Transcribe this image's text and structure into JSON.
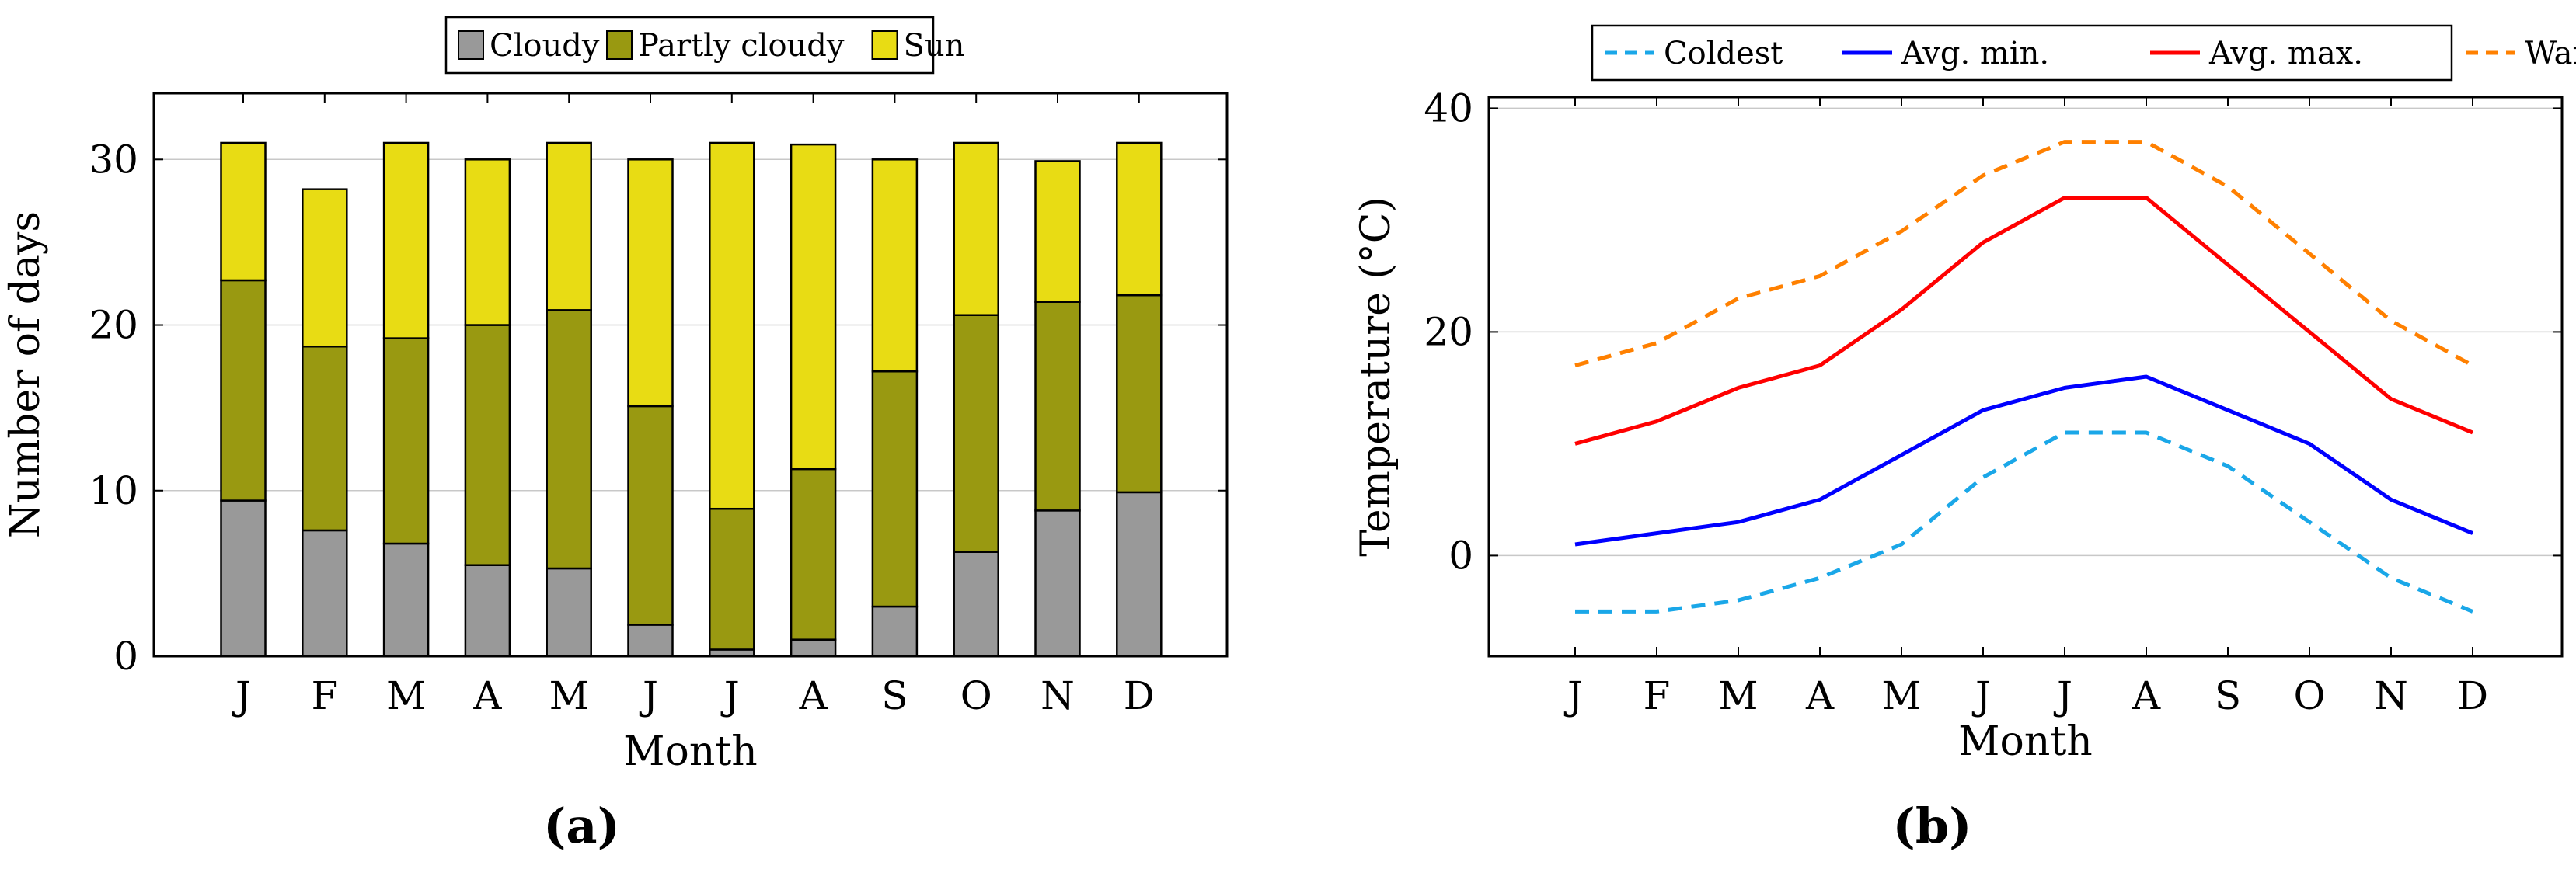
{
  "colors": {
    "cloudy": "#999999",
    "partly_cloudy": "#999911",
    "sun": "#e8dc14",
    "coldest": "#1aa7e8",
    "avg_min": "#0000ff",
    "avg_max": "#ff0000",
    "warmest": "#ff8000"
  },
  "chart_data": [
    {
      "type": "bar",
      "stacked": true,
      "panel_label": "(a)",
      "title": "",
      "xlabel": "Month",
      "ylabel": "Number of days",
      "categories": [
        "J",
        "F",
        "M",
        "A",
        "M",
        "J",
        "J",
        "A",
        "S",
        "O",
        "N",
        "D"
      ],
      "ylim": [
        0,
        34
      ],
      "yticks": [
        0,
        10,
        20,
        30
      ],
      "legend_position": "top-center",
      "series": [
        {
          "name": "Cloudy",
          "color_key": "cloudy",
          "values": [
            9.4,
            7.6,
            6.8,
            5.5,
            5.3,
            1.9,
            0.4,
            1.0,
            3.0,
            6.3,
            8.8,
            9.9
          ]
        },
        {
          "name": "Partly cloudy",
          "color_key": "partly_cloudy",
          "values": [
            13.3,
            11.1,
            12.4,
            14.5,
            15.6,
            13.2,
            8.5,
            10.3,
            14.2,
            14.3,
            12.6,
            11.9
          ]
        },
        {
          "name": "Sun",
          "color_key": "sun",
          "values": [
            8.3,
            9.5,
            11.8,
            10.0,
            10.1,
            14.9,
            22.1,
            19.6,
            12.8,
            10.4,
            8.5,
            9.2
          ]
        }
      ]
    },
    {
      "type": "line",
      "panel_label": "(b)",
      "title": "",
      "xlabel": "Month",
      "ylabel": "Temperature (°C)",
      "categories": [
        "J",
        "F",
        "M",
        "A",
        "M",
        "J",
        "J",
        "A",
        "S",
        "O",
        "N",
        "D"
      ],
      "ylim": [
        -9,
        41
      ],
      "yticks": [
        0,
        20,
        40
      ],
      "legend_position": "top-center",
      "series": [
        {
          "name": "Coldest",
          "color_key": "coldest",
          "dashed": true,
          "values": [
            -5,
            -5,
            -4,
            -2,
            1,
            7,
            11,
            11,
            8,
            3,
            -2,
            -5
          ]
        },
        {
          "name": "Avg. min.",
          "color_key": "avg_min",
          "dashed": false,
          "values": [
            1,
            2,
            3,
            5,
            9,
            13,
            15,
            16,
            13,
            10,
            5,
            2
          ]
        },
        {
          "name": "Avg. max.",
          "color_key": "avg_max",
          "dashed": false,
          "values": [
            10,
            12,
            15,
            17,
            22,
            28,
            32,
            32,
            26,
            20,
            14,
            11
          ]
        },
        {
          "name": "Warmest",
          "color_key": "warmest",
          "dashed": true,
          "values": [
            17,
            19,
            23,
            25,
            29,
            34,
            37,
            37,
            33,
            27,
            21,
            17
          ]
        }
      ]
    }
  ]
}
